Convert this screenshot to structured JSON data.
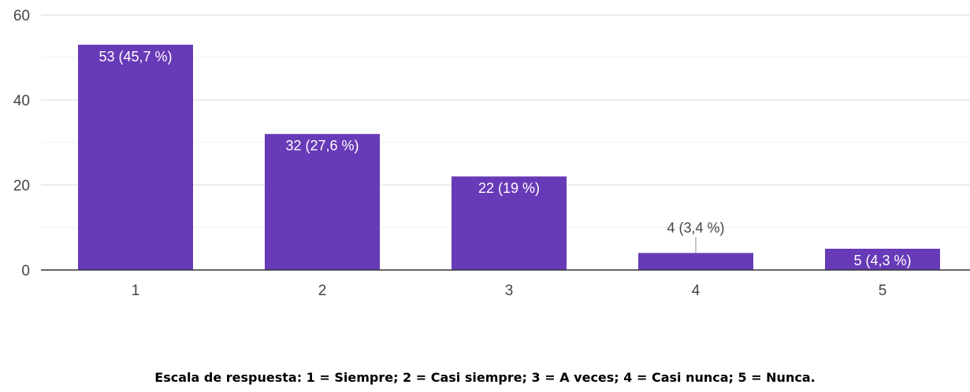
{
  "chart_data": {
    "type": "bar",
    "categories": [
      "1",
      "2",
      "3",
      "4",
      "5"
    ],
    "values": [
      53,
      32,
      22,
      4,
      5
    ],
    "data_labels": [
      "53 (45,7 %)",
      "32 (27,6 %)",
      "22 (19 %)",
      "4 (3,4 %)",
      "5 (4,3 %)"
    ],
    "y_ticks": [
      "0",
      "20",
      "40",
      "60"
    ],
    "ylim": [
      0,
      60
    ],
    "grid": true,
    "bar_color": "#673ab7",
    "caption": "Escala de respuesta: 1 = Siempre; 2 = Casi siempre; 3 = A veces; 4 = Casi nunca; 5 = Nunca."
  }
}
